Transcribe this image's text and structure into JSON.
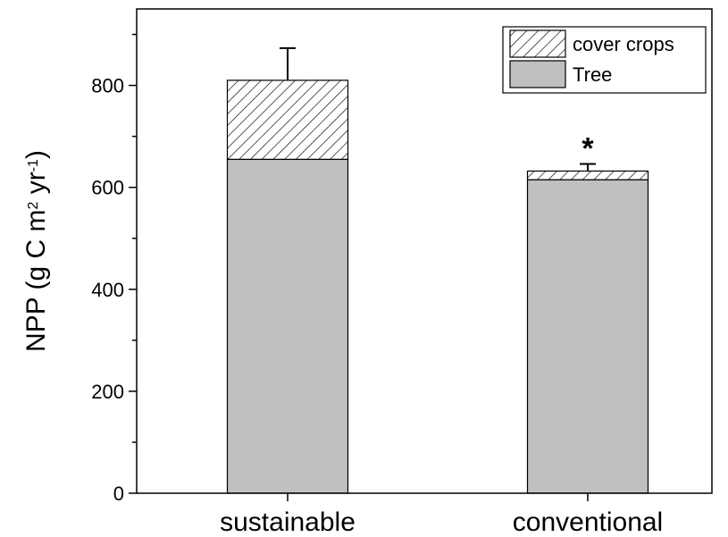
{
  "chart_data": {
    "type": "bar",
    "stacked": true,
    "categories": [
      "sustainable",
      "conventional"
    ],
    "series": [
      {
        "name": "Tree",
        "values": [
          655,
          615
        ],
        "fill": "#c0c0c0",
        "pattern": "solid"
      },
      {
        "name": "cover crops",
        "values": [
          155,
          17
        ],
        "fill": "#ffffff",
        "pattern": "diagonal-hatch"
      }
    ],
    "totals": [
      810,
      632
    ],
    "error_bars": [
      63,
      14
    ],
    "annotations": [
      {
        "category": "conventional",
        "text": "*"
      }
    ],
    "ylabel": {
      "main": "NPP  (g C m",
      "sup1": "2",
      "mid": " yr",
      "sup2": "-1",
      "end": ")"
    },
    "xlabel": "",
    "ylim": [
      0,
      950
    ],
    "yticks": [
      0,
      200,
      400,
      600,
      800
    ],
    "ytick_labels": [
      "0",
      "200",
      "400",
      "600",
      "800"
    ],
    "legend": {
      "position": "top-right",
      "entries": [
        "cover crops",
        "Tree"
      ]
    },
    "grid": false
  }
}
